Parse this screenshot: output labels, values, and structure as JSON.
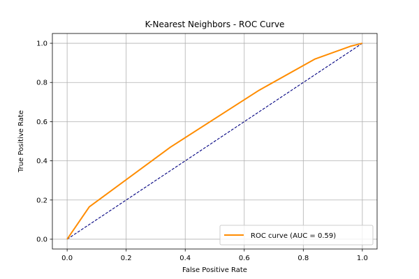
{
  "chart_data": {
    "type": "line",
    "title": "K-Nearest Neighbors - ROC Curve",
    "xlabel": "False Positive Rate",
    "ylabel": "True Positive Rate",
    "xlim": [
      -0.05,
      1.05
    ],
    "ylim": [
      -0.05,
      1.05
    ],
    "xticks": [
      0.0,
      0.2,
      0.4,
      0.6,
      0.8,
      1.0
    ],
    "xtick_labels": [
      "0.0",
      "0.2",
      "0.4",
      "0.6",
      "0.8",
      "1.0"
    ],
    "yticks": [
      0.0,
      0.2,
      0.4,
      0.6,
      0.8,
      1.0
    ],
    "ytick_labels": [
      "0.0",
      "0.2",
      "0.4",
      "0.6",
      "0.8",
      "1.0"
    ],
    "grid": true,
    "legend_position": "lower-right",
    "series": [
      {
        "name": "ROC curve (AUC = 0.59)",
        "color": "#ff8c00",
        "style": "solid",
        "x": [
          0.0,
          0.075,
          0.35,
          0.65,
          0.84,
          0.96,
          1.0
        ],
        "y": [
          0.0,
          0.165,
          0.47,
          0.76,
          0.92,
          0.985,
          1.0
        ]
      },
      {
        "color": "#000080",
        "style": "dashed",
        "x": [
          0.0,
          1.0
        ],
        "y": [
          0.0,
          1.0
        ]
      }
    ]
  }
}
